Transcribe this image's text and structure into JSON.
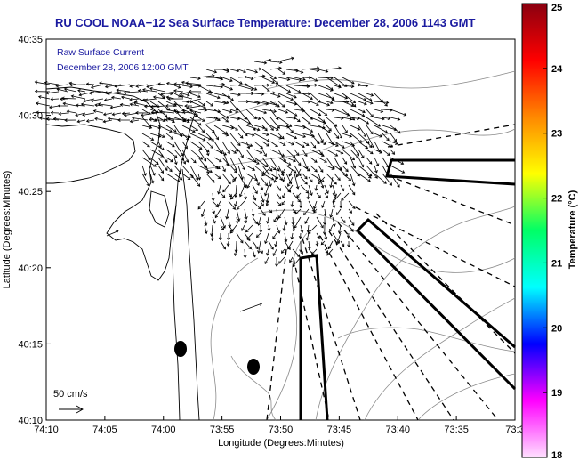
{
  "title": "RU COOL  NOAA−12  Sea Surface Temperature:  December 28, 2006 1143 GMT",
  "legend": {
    "line1": "Raw Surface Current",
    "line2": "December 28, 2006 12:00 GMT"
  },
  "scale_label": "50 cm/s",
  "x_axis": {
    "label": "Longitude (Degrees:Minutes)",
    "ticks": [
      "74:10",
      "74:05",
      "74:00",
      "73:55",
      "73:50",
      "73:45",
      "73:40",
      "73:35",
      "73:3"
    ]
  },
  "y_axis": {
    "label": "Latitude (Degrees:Minutes)",
    "ticks": [
      "40:35",
      "40:30",
      "40:25",
      "40:20",
      "40:15",
      "40:10"
    ]
  },
  "colorbar": {
    "label": "Temperature (°C)",
    "ticks": [
      "25",
      "24",
      "23",
      "22",
      "21",
      "20",
      "19",
      "18"
    ],
    "colors": [
      "#8a0010",
      "#ff0000",
      "#ff8800",
      "#ffff00",
      "#00ff66",
      "#00ffff",
      "#0000ff",
      "#ff00ff",
      "#ffe0ff"
    ]
  },
  "colors": {
    "title": "#1a1aa0",
    "coast": "#000000",
    "bathymetry": "#888888"
  }
}
